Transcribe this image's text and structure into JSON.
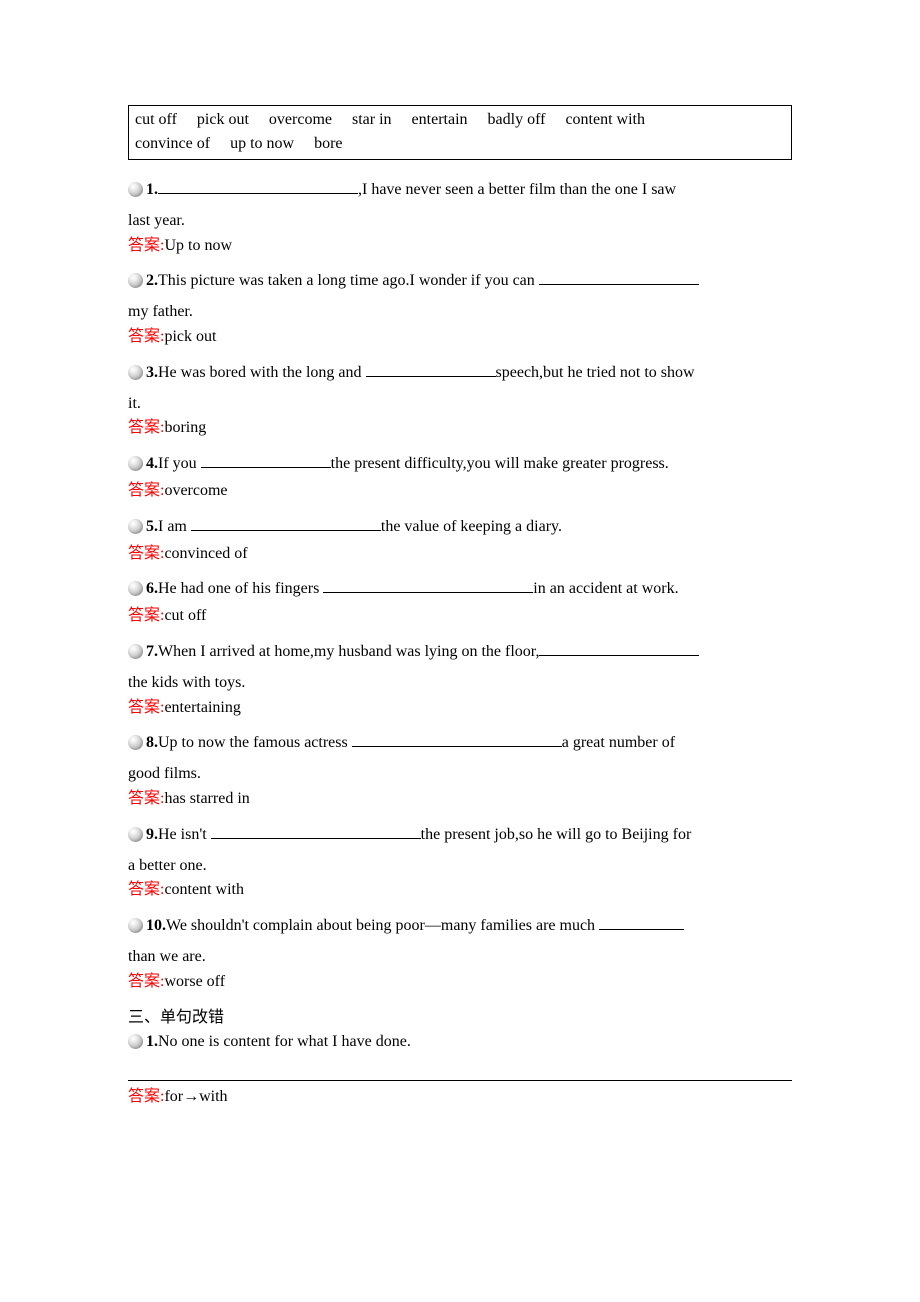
{
  "wordbox": {
    "items": [
      "cut off",
      "pick out",
      "overcome",
      "star in",
      "entertain",
      "badly off",
      "content with",
      "convince of",
      "up to now",
      "bore"
    ]
  },
  "answer_label": "答案",
  "questions": [
    {
      "num": "1.",
      "pre": "",
      "blank_width": 200,
      "post": ",I have never seen a better film than the one I saw",
      "cont": "last year.",
      "answer": "Up to now"
    },
    {
      "num": "2.",
      "pre": "This picture was taken a long time ago.I wonder if you can ",
      "blank_width": 160,
      "post": "",
      "cont": "my father.",
      "answer": "pick out"
    },
    {
      "num": "3.",
      "pre": "He was bored with the long and ",
      "blank_width": 130,
      "post": "speech,but he tried not to show",
      "cont": "it.",
      "answer": "boring"
    },
    {
      "num": "4.",
      "pre": "If you ",
      "blank_width": 130,
      "post": "the present difficulty,you will make greater progress.",
      "cont": "",
      "answer": "overcome"
    },
    {
      "num": "5.",
      "pre": "I am ",
      "blank_width": 190,
      "post": "the value of keeping a diary.",
      "cont": "",
      "answer": "convinced of"
    },
    {
      "num": "6.",
      "pre": "He had one of his fingers ",
      "blank_width": 210,
      "post": "in an accident at work.",
      "cont": "",
      "answer": "cut off"
    },
    {
      "num": "7.",
      "pre": "When I arrived at home,my husband was lying on the floor,",
      "blank_width": 160,
      "post": "",
      "cont": "the kids with toys.",
      "answer": "entertaining"
    },
    {
      "num": "8.",
      "pre": "Up to now the famous actress ",
      "blank_width": 210,
      "post": "a great number of",
      "cont": "good films.",
      "answer": "has starred in"
    },
    {
      "num": "9.",
      "pre": "He isn't ",
      "blank_width": 210,
      "post": "the present job,so he will go to Beijing for",
      "cont": "a better one.",
      "answer": "content with"
    },
    {
      "num": "10.",
      "pre": "We shouldn't complain about being poor—many families are much ",
      "blank_width": 85,
      "post": "",
      "cont": "than we are.",
      "answer": "worse off"
    }
  ],
  "section3_heading": "三、单句改错",
  "section3": [
    {
      "num": "1.",
      "text": "No one is content for what I have done.",
      "answer": "for→with"
    }
  ]
}
